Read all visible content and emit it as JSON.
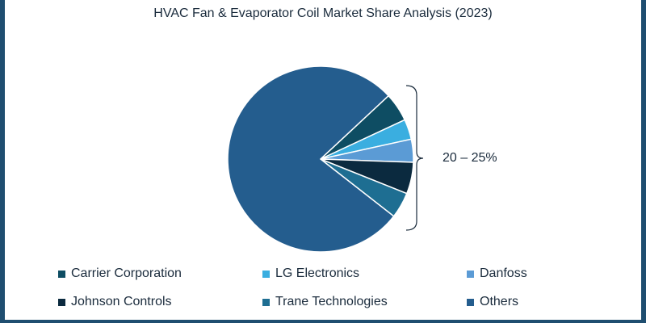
{
  "chart_data": {
    "type": "pie",
    "title": "HVAC Fan & Evaporator Coil Market Share Analysis (2023)",
    "slices": [
      {
        "label": "Carrier Corporation",
        "value": 5,
        "color": "#0e4d63"
      },
      {
        "label": "LG Electronics",
        "value": 3.5,
        "color": "#3aaee0"
      },
      {
        "label": "Danfoss",
        "value": 4,
        "color": "#5b9bd5"
      },
      {
        "label": "Johnson Controls",
        "value": 5.5,
        "color": "#0b2a3f"
      },
      {
        "label": "Trane Technologies",
        "value": 4.5,
        "color": "#1e6e92"
      },
      {
        "label": "Others",
        "value": 77.5,
        "color": "#245d8e"
      }
    ],
    "annotation": "20 – 25%",
    "legend_position": "bottom"
  }
}
